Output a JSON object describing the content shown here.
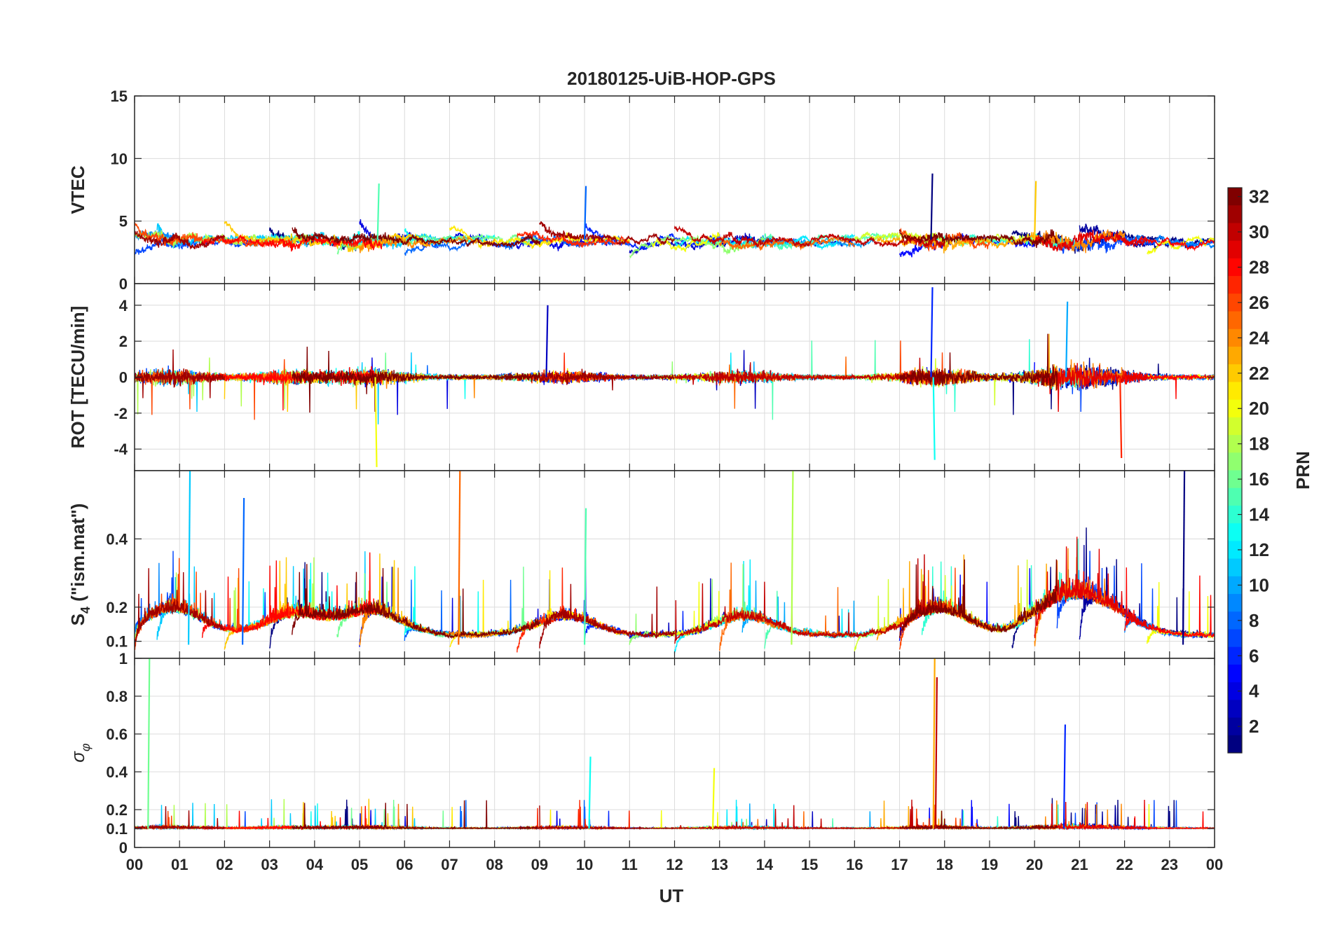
{
  "chart_data": {
    "type": "line",
    "title": "20180125-UiB-HOP-GPS",
    "xlabel": "UT",
    "x_ticks": [
      "00",
      "01",
      "02",
      "03",
      "04",
      "05",
      "06",
      "07",
      "08",
      "09",
      "10",
      "11",
      "12",
      "13",
      "14",
      "15",
      "16",
      "17",
      "18",
      "19",
      "20",
      "21",
      "22",
      "23",
      "00"
    ],
    "xlim_hours": [
      0,
      24
    ],
    "grid": true,
    "panels": [
      {
        "id": "vtec",
        "ylabel": "VTEC",
        "ylim": [
          0,
          15
        ],
        "yticks": [
          0,
          5,
          10,
          15
        ],
        "ytick_labels": [
          "0",
          "5",
          "10",
          "15"
        ],
        "baseline": 3.5,
        "event_bursts": [
          [
            17.7,
            8.8
          ],
          [
            10.0,
            7.8
          ],
          [
            5.4,
            8.0
          ],
          [
            20.0,
            8.2
          ]
        ]
      },
      {
        "id": "rot",
        "ylabel": "ROT [TECU/min]",
        "ylim": [
          -5.2,
          5.2
        ],
        "yticks": [
          -4,
          -2,
          0,
          2,
          4
        ],
        "ytick_labels": [
          "-4",
          "-2",
          "0",
          "2",
          "4"
        ],
        "baseline": 0,
        "event_bursts": [
          [
            17.7,
            5.0
          ],
          [
            17.75,
            -4.6
          ],
          [
            5.35,
            -5.0
          ],
          [
            21.9,
            -4.5
          ],
          [
            9.15,
            4.0
          ],
          [
            20.7,
            4.2
          ]
        ]
      },
      {
        "id": "s4",
        "ylabel": "S4 (\"ism.mat\")",
        "ylabel_main": "S",
        "ylabel_sub": "4",
        "ylabel_rest": " (\"ism.mat\")",
        "ylim": [
          0.05,
          0.6
        ],
        "yticks": [
          0.1,
          0.2,
          0.4
        ],
        "ytick_labels": [
          "0.1",
          "0.2",
          "0.4"
        ],
        "baseline": 0.09,
        "event_bursts": [
          [
            1.2,
            0.6
          ],
          [
            14.6,
            0.6
          ],
          [
            7.2,
            0.6
          ],
          [
            23.3,
            0.6
          ],
          [
            2.4,
            0.52
          ],
          [
            10.0,
            0.49
          ]
        ]
      },
      {
        "id": "sigma_phi",
        "ylabel": "σ φ",
        "ylabel_main": "σ",
        "ylabel_sub": "φ",
        "ylim": [
          0,
          1
        ],
        "yticks": [
          0,
          0.1,
          0.2,
          0.4,
          0.6,
          0.8,
          1
        ],
        "ytick_labels": [
          "0",
          "0.1",
          "0.2",
          "0.4",
          "0.6",
          "0.8",
          "1"
        ],
        "baseline": 0.1,
        "event_bursts": [
          [
            0.3,
            1.0
          ],
          [
            17.75,
            1.0
          ],
          [
            17.8,
            0.9
          ],
          [
            20.65,
            0.65
          ],
          [
            10.1,
            0.48
          ],
          [
            12.85,
            0.42
          ]
        ]
      }
    ],
    "colorbar": {
      "label": "PRN",
      "colormap": "jet",
      "range": [
        1,
        32
      ],
      "ticks": [
        2,
        4,
        6,
        8,
        10,
        12,
        14,
        16,
        18,
        20,
        22,
        24,
        26,
        28,
        30,
        32
      ],
      "tick_labels": [
        "2",
        "4",
        "6",
        "8",
        "10",
        "12",
        "14",
        "16",
        "18",
        "20",
        "22",
        "24",
        "26",
        "28",
        "30",
        "32"
      ]
    },
    "series": [
      {
        "name": "PRN 1",
        "prn": 1,
        "passes_hours": [
          [
            19.5,
            24.0
          ],
          [
            3.0,
            5.0
          ]
        ]
      },
      {
        "name": "PRN 2",
        "prn": 2,
        "passes_hours": [
          [
            21.0,
            23.5
          ]
        ]
      },
      {
        "name": "PRN 3",
        "prn": 3,
        "passes_hours": [
          [
            11.0,
            16.0
          ]
        ]
      },
      {
        "name": "PRN 4",
        "prn": 4,
        "passes_hours": [
          [
            5.0,
            10.5
          ]
        ]
      },
      {
        "name": "PRN 5",
        "prn": 5,
        "passes_hours": [
          [
            17.0,
            20.0
          ]
        ]
      },
      {
        "name": "PRN 6",
        "prn": 6,
        "passes_hours": [
          [
            10.0,
            13.0
          ]
        ]
      },
      {
        "name": "PRN 7",
        "prn": 7,
        "passes_hours": [
          [
            0.0,
            3.0
          ],
          [
            20.5,
            24.0
          ]
        ]
      },
      {
        "name": "PRN 8",
        "prn": 8,
        "passes_hours": [
          [
            6.0,
            11.0
          ]
        ]
      },
      {
        "name": "PRN 9",
        "prn": 9,
        "passes_hours": [
          [
            22.0,
            24.0
          ],
          [
            0.0,
            1.0
          ]
        ]
      },
      {
        "name": "PRN 10",
        "prn": 10,
        "passes_hours": [
          [
            13.5,
            16.5
          ]
        ]
      },
      {
        "name": "PRN 11",
        "prn": 11,
        "passes_hours": [
          [
            0.5,
            7.0
          ]
        ]
      },
      {
        "name": "PRN 12",
        "prn": 12,
        "passes_hours": [
          [
            12.0,
            16.0
          ]
        ]
      },
      {
        "name": "PRN 13",
        "prn": 13,
        "passes_hours": [
          [
            2.5,
            5.0
          ],
          [
            6.0,
            8.0
          ]
        ]
      },
      {
        "name": "PRN 14",
        "prn": 14,
        "passes_hours": [
          [
            17.5,
            21.0
          ]
        ]
      },
      {
        "name": "PRN 15",
        "prn": 15,
        "passes_hours": [
          [
            14.0,
            17.0
          ]
        ]
      },
      {
        "name": "PRN 16",
        "prn": 16,
        "passes_hours": [
          [
            4.5,
            9.0
          ]
        ]
      },
      {
        "name": "PRN 17",
        "prn": 17,
        "passes_hours": [
          [
            11.0,
            14.0
          ]
        ]
      },
      {
        "name": "PRN 18",
        "prn": 18,
        "passes_hours": [
          [
            0.0,
            4.0
          ]
        ]
      },
      {
        "name": "PRN 19",
        "prn": 19,
        "passes_hours": [
          [
            16.0,
            20.0
          ]
        ]
      },
      {
        "name": "PRN 20",
        "prn": 20,
        "passes_hours": [
          [
            11.5,
            13.0
          ],
          [
            22.5,
            24.0
          ]
        ]
      },
      {
        "name": "PRN 21",
        "prn": 21,
        "passes_hours": [
          [
            7.0,
            11.0
          ]
        ]
      },
      {
        "name": "PRN 22",
        "prn": 22,
        "passes_hours": [
          [
            2.0,
            6.5
          ]
        ]
      },
      {
        "name": "PRN 23",
        "prn": 23,
        "passes_hours": [
          [
            16.5,
            20.5
          ]
        ]
      },
      {
        "name": "PRN 24",
        "prn": 24,
        "passes_hours": [
          [
            5.0,
            8.0
          ],
          [
            20.0,
            22.0
          ]
        ]
      },
      {
        "name": "PRN 25",
        "prn": 25,
        "passes_hours": [
          [
            13.0,
            16.0
          ]
        ]
      },
      {
        "name": "PRN 26",
        "prn": 26,
        "passes_hours": [
          [
            0.0,
            3.5
          ],
          [
            17.0,
            19.0
          ]
        ]
      },
      {
        "name": "PRN 27",
        "prn": 27,
        "passes_hours": [
          [
            8.5,
            11.0
          ]
        ]
      },
      {
        "name": "PRN 28",
        "prn": 28,
        "passes_hours": [
          [
            1.5,
            5.5
          ],
          [
            22.0,
            24.0
          ]
        ]
      },
      {
        "name": "PRN 29",
        "prn": 29,
        "passes_hours": [
          [
            20.0,
            22.5
          ]
        ]
      },
      {
        "name": "PRN 30",
        "prn": 30,
        "passes_hours": [
          [
            12.0,
            18.0
          ]
        ]
      },
      {
        "name": "PRN 31",
        "prn": 31,
        "passes_hours": [
          [
            0.0,
            2.0
          ],
          [
            9.0,
            12.0
          ]
        ]
      },
      {
        "name": "PRN 32",
        "prn": 32,
        "passes_hours": [
          [
            3.5,
            9.0
          ],
          [
            17.0,
            20.5
          ]
        ]
      }
    ]
  }
}
